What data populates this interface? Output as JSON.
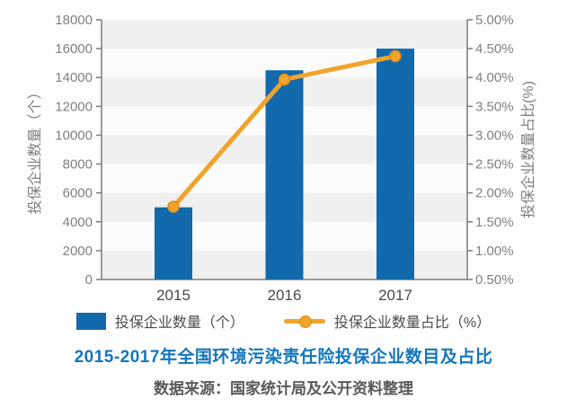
{
  "chart_data": {
    "type": "bar+line",
    "title": "2015-2017年全国环境污染责任险投保企业数目及占比",
    "source": "数据来源：国家统计局及公开资料整理",
    "categories": [
      "2015",
      "2016",
      "2017"
    ],
    "series": [
      {
        "name": "投保企业数量（个）",
        "type": "bar",
        "axis": "left",
        "values": [
          5000,
          14500,
          16000
        ],
        "color": "#1269ac"
      },
      {
        "name": "投保企业数量占比（%）",
        "type": "line",
        "axis": "right",
        "values": [
          1.4,
          3.85,
          4.3
        ],
        "color": "#f0a42c",
        "marker_stroke": "#dd8c1a"
      }
    ],
    "left_axis": {
      "label": "投保企业数量（个）",
      "min": 0,
      "max": 18000,
      "step": 2000
    },
    "right_axis": {
      "label": "投保企业数量占比(%)",
      "min": 0,
      "max": 5,
      "step": 0.5,
      "format": "percent2"
    },
    "grid": {
      "band_color": "#f0f0f0",
      "alt_band_color": "#fbfbfb"
    },
    "axis_line_color": "#7b7b7b",
    "tick_label_color": "#808080",
    "x_label_color": "#4a4a4a",
    "axis_title_color": "#7f7f7f",
    "title_color": "#1477bd",
    "legend_position": "bottom"
  }
}
